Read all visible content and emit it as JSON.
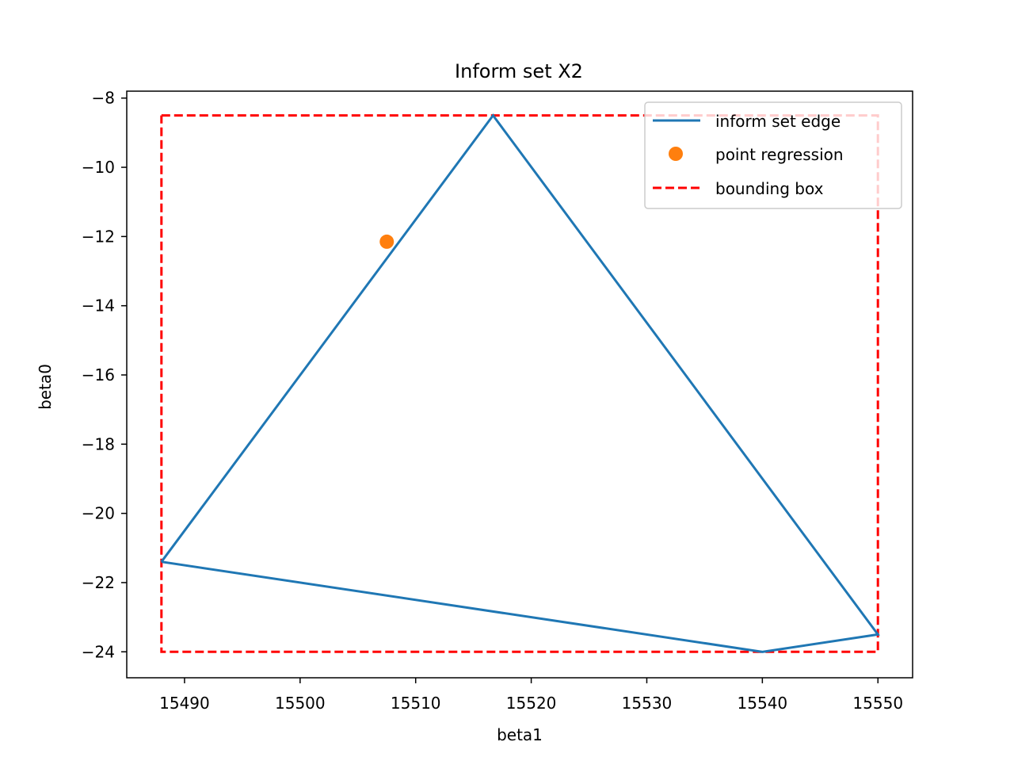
{
  "chart_data": {
    "type": "line",
    "title": "Inform set X2",
    "xlabel": "beta1",
    "ylabel": "beta0",
    "xlim": [
      15485,
      15553
    ],
    "ylim": [
      -24.75,
      -7.8
    ],
    "xticks": [
      15490,
      15500,
      15510,
      15520,
      15530,
      15540,
      15550
    ],
    "xtick_labels": [
      "15490",
      "15500",
      "15510",
      "15520",
      "15530",
      "15540",
      "15550"
    ],
    "yticks": [
      -8,
      -10,
      -12,
      -14,
      -16,
      -18,
      -20,
      -22,
      -24
    ],
    "ytick_labels": [
      "−8",
      "−10",
      "−12",
      "−14",
      "−16",
      "−18",
      "−20",
      "−22",
      "−24"
    ],
    "grid": false,
    "legend_position": "top-right",
    "series": [
      {
        "name": "inform set edge",
        "kind": "line",
        "color": "#1f77b4",
        "points": [
          [
            15488.0,
            -21.4
          ],
          [
            15516.7,
            -8.5
          ],
          [
            15550.0,
            -23.5
          ],
          [
            15540.0,
            -24.0
          ],
          [
            15488.0,
            -21.4
          ]
        ]
      },
      {
        "name": "point regression",
        "kind": "marker",
        "color": "#ff7f0e",
        "points": [
          [
            15507.5,
            -12.15
          ]
        ]
      },
      {
        "name": "bounding box",
        "kind": "dashed",
        "color": "#ff0000",
        "points": [
          [
            15488.0,
            -8.5
          ],
          [
            15550.0,
            -8.5
          ],
          [
            15550.0,
            -24.0
          ],
          [
            15488.0,
            -24.0
          ],
          [
            15488.0,
            -8.5
          ]
        ]
      }
    ]
  }
}
